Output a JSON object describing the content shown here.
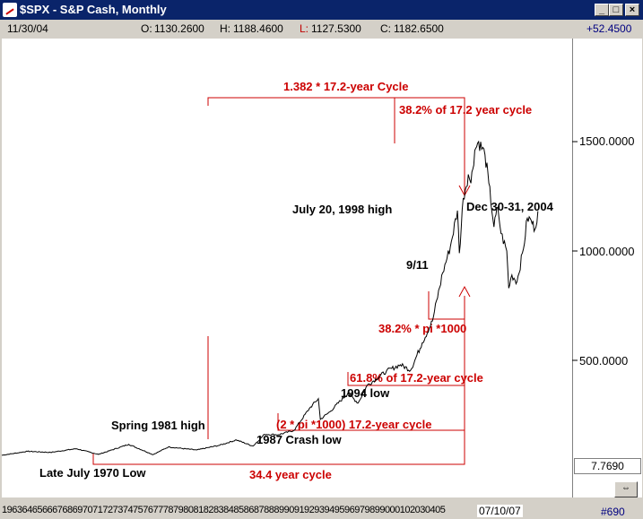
{
  "window": {
    "title": "$SPX - S&P Cash, Monthly",
    "buttons": {
      "minimize": "_",
      "maximize": "□",
      "close": "×"
    }
  },
  "quote": {
    "date": "11/30/04",
    "open_label": "O:",
    "open": "1130.2600",
    "high_label": "H:",
    "high": "1188.4600",
    "low_label": "L:",
    "low": "1127.5300",
    "close_label": "C:",
    "close": "1182.6500",
    "change": "+52.4500"
  },
  "axis": {
    "y_ticks": [
      {
        "value": 1500,
        "label": "1500.0000"
      },
      {
        "value": 1000,
        "label": "1000.0000"
      },
      {
        "value": 500,
        "label": "500.0000"
      }
    ],
    "bottom_value": "7.7690",
    "x_ticks_text": "1963646566676869707172737475767778798081828384858687888990919293949596979899000102030405",
    "cursor_date": "07/10/07",
    "record_label": "#690"
  },
  "colors": {
    "price": "#000000",
    "annotation": "#cc0000",
    "titlebar": "#0a246a"
  },
  "chart_data": {
    "type": "line",
    "title": "$SPX - S&P Cash, Monthly",
    "xlabel": "",
    "ylabel": "",
    "ylim": [
      0,
      1720
    ],
    "xlim": [
      1963.0,
      2007.5
    ],
    "grid": false,
    "series": [
      {
        "name": "$SPX",
        "x": [
          1963.0,
          1965.0,
          1966.8,
          1968.8,
          1970.55,
          1972.9,
          1974.8,
          1976.0,
          1978.2,
          1980.0,
          1981.3,
          1982.6,
          1983.5,
          1984.6,
          1985.8,
          1987.0,
          1987.7,
          1987.85,
          1988.6,
          1990.0,
          1990.8,
          1991.5,
          1993.0,
          1994.1,
          1994.9,
          1995.8,
          1996.6,
          1997.4,
          1998.0,
          1998.55,
          1998.7,
          1999.0,
          1999.4,
          1999.6,
          1999.9,
          2000.2,
          2000.7,
          2001.0,
          2001.4,
          2001.7,
          2001.95,
          2002.4,
          2002.55,
          2002.8,
          2003.2,
          2003.7,
          2004.0,
          2004.3,
          2004.6,
          2004.83
        ],
        "values": [
          66,
          84,
          79,
          96,
          70,
          116,
          69,
          104,
          90,
          112,
          136,
          108,
          162,
          160,
          180,
          280,
          325,
          230,
          265,
          350,
          305,
          385,
          450,
          480,
          455,
          580,
          680,
          900,
          1020,
          1185,
          990,
          1240,
          1350,
          1310,
          1460,
          1500,
          1440,
          1310,
          1110,
          1200,
          1080,
          1000,
          830,
          890,
          860,
          1010,
          1150,
          1140,
          1100,
          1182
        ]
      }
    ],
    "annotations": [
      "1.382 * 17.2-year Cycle",
      "38.2% of 17.2 year cycle",
      "July 20, 1998 high",
      "Dec 30-31, 2004",
      "9/11",
      "38.2% * pi *1000",
      "61.8% of 17.2-year cycle",
      "1994 low",
      "Spring 1981 high",
      "(2 * pi *1000) 17.2-year cycle",
      "1987 Crash low",
      "Late July 1970 Low",
      "34.4 year cycle"
    ]
  }
}
